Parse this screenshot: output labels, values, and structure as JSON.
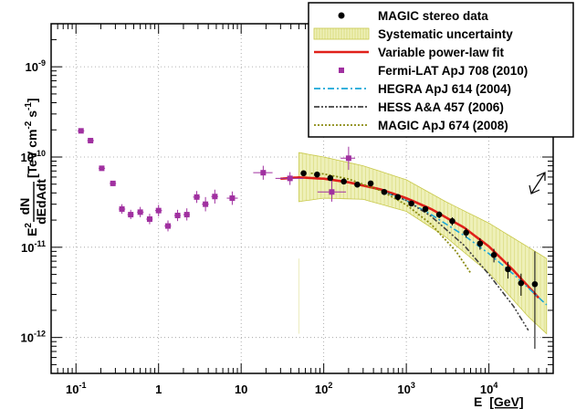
{
  "chart_data": {
    "type": "scatter",
    "x_scale": "log",
    "y_scale": "log",
    "xlim": [
      0.05,
      60000
    ],
    "ylim": [
      4e-13,
      3e-09
    ],
    "grid": true,
    "legend_position": "top-right",
    "xlabel": {
      "main": "E",
      "unit": "[GeV]"
    },
    "ylabel": {
      "prefix": "E",
      "prefix_exp": "2",
      "frac_num": "dN",
      "frac_den": "dEdAdt",
      "unit_a": "[TeV cm",
      "unit_exp1": "-2",
      "unit_b": " s",
      "unit_exp2": "-1",
      "unit_c": "]"
    },
    "x_ticks": [
      {
        "value": 0.1,
        "label": "10",
        "exp": "-1"
      },
      {
        "value": 1,
        "label": "1",
        "exp": ""
      },
      {
        "value": 10,
        "label": "10",
        "exp": ""
      },
      {
        "value": 100,
        "label": "10",
        "exp": "2"
      },
      {
        "value": 1000,
        "label": "10",
        "exp": "3"
      },
      {
        "value": 10000,
        "label": "10",
        "exp": "4"
      }
    ],
    "y_ticks": [
      {
        "value": 1e-12,
        "label": "10",
        "exp": "-12"
      },
      {
        "value": 1e-11,
        "label": "10",
        "exp": "-11"
      },
      {
        "value": 1e-10,
        "label": "10",
        "exp": "-10"
      },
      {
        "value": 1e-09,
        "label": "10",
        "exp": "-9"
      }
    ],
    "legend": [
      {
        "label": "MAGIC stereo data",
        "style": "dot",
        "color": "#000000"
      },
      {
        "label": "Systematic uncertainty",
        "style": "band",
        "color": "#c8c84a"
      },
      {
        "label": "Variable power-law fit",
        "style": "line",
        "color": "#e0201a"
      },
      {
        "label": "Fermi-LAT ApJ 708 (2010)",
        "style": "square",
        "color": "#a030a0"
      },
      {
        "label": "HEGRA ApJ 614 (2004)",
        "style": "dashdot",
        "color": "#18a6d8"
      },
      {
        "label": "HESS  A&A 457 (2006)",
        "style": "dashdotdot",
        "color": "#404040"
      },
      {
        "label": "MAGIC ApJ 674 (2008)",
        "style": "dotted",
        "color": "#8a8a10"
      }
    ],
    "series": [
      {
        "name": "Fermi-LAT ApJ 708 (2010)",
        "color": "#a030a0",
        "points": [
          {
            "x": 0.115,
            "y": 1.95e-10,
            "xlo": 0.105,
            "xhi": 0.126,
            "ylo": 1.85e-10,
            "yhi": 2.05e-10
          },
          {
            "x": 0.15,
            "y": 1.52e-10,
            "xlo": 0.137,
            "xhi": 0.165,
            "ylo": 1.44e-10,
            "yhi": 1.6e-10
          },
          {
            "x": 0.205,
            "y": 7.5e-11,
            "xlo": 0.188,
            "xhi": 0.225,
            "ylo": 7.1e-11,
            "yhi": 7.9e-11
          },
          {
            "x": 0.28,
            "y": 5.1e-11,
            "xlo": 0.256,
            "xhi": 0.306,
            "ylo": 4.75e-11,
            "yhi": 5.45e-11
          },
          {
            "x": 0.36,
            "y": 2.65e-11,
            "xlo": 0.33,
            "xhi": 0.395,
            "ylo": 2.35e-11,
            "yhi": 3e-11
          },
          {
            "x": 0.46,
            "y": 2.3e-11,
            "xlo": 0.42,
            "xhi": 0.5,
            "ylo": 2.05e-11,
            "yhi": 2.6e-11
          },
          {
            "x": 0.6,
            "y": 2.45e-11,
            "xlo": 0.55,
            "xhi": 0.66,
            "ylo": 2.15e-11,
            "yhi": 2.8e-11
          },
          {
            "x": 0.78,
            "y": 2.05e-11,
            "xlo": 0.71,
            "xhi": 0.85,
            "ylo": 1.8e-11,
            "yhi": 2.35e-11
          },
          {
            "x": 1.0,
            "y": 2.55e-11,
            "xlo": 0.91,
            "xhi": 1.1,
            "ylo": 2.2e-11,
            "yhi": 2.95e-11
          },
          {
            "x": 1.3,
            "y": 1.72e-11,
            "xlo": 1.18,
            "xhi": 1.42,
            "ylo": 1.5e-11,
            "yhi": 1.98e-11
          },
          {
            "x": 1.7,
            "y": 2.25e-11,
            "xlo": 1.55,
            "xhi": 1.86,
            "ylo": 1.95e-11,
            "yhi": 2.6e-11
          },
          {
            "x": 2.2,
            "y": 2.3e-11,
            "xlo": 2.0,
            "xhi": 2.4,
            "ylo": 1.98e-11,
            "yhi": 2.7e-11
          },
          {
            "x": 2.9,
            "y": 3.6e-11,
            "xlo": 2.62,
            "xhi": 3.18,
            "ylo": 3.1e-11,
            "yhi": 4.2e-11
          },
          {
            "x": 3.7,
            "y": 3e-11,
            "xlo": 3.35,
            "xhi": 4.05,
            "ylo": 2.5e-11,
            "yhi": 3.6e-11
          },
          {
            "x": 4.8,
            "y": 3.65e-11,
            "xlo": 4.35,
            "xhi": 5.25,
            "ylo": 3.05e-11,
            "yhi": 4.35e-11
          },
          {
            "x": 7.8,
            "y": 3.5e-11,
            "xlo": 6.7,
            "xhi": 9.1,
            "ylo": 2.95e-11,
            "yhi": 4.15e-11
          },
          {
            "x": 18.5,
            "y": 6.7e-11,
            "xlo": 14.0,
            "xhi": 24.0,
            "ylo": 5.6e-11,
            "yhi": 8e-11
          },
          {
            "x": 39,
            "y": 5.8e-11,
            "xlo": 26.0,
            "xhi": 57.0,
            "ylo": 4.9e-11,
            "yhi": 6.8e-11
          },
          {
            "x": 125,
            "y": 4.1e-11,
            "xlo": 84.0,
            "xhi": 186.0,
            "ylo": 3.2e-11,
            "yhi": 6e-11
          },
          {
            "x": 200,
            "y": 9.7e-11,
            "xlo": 160.0,
            "xhi": 240.0,
            "ylo": 7.2e-11,
            "yhi": 1.3e-10
          }
        ]
      },
      {
        "name": "MAGIC stereo data",
        "color": "#000000",
        "points": [
          {
            "x": 57,
            "y": 6.6e-11,
            "ylo": 6.3e-11,
            "yhi": 6.9e-11
          },
          {
            "x": 83,
            "y": 6.4e-11,
            "ylo": 6.1e-11,
            "yhi": 6.7e-11
          },
          {
            "x": 120,
            "y": 5.85e-11,
            "ylo": 5.6e-11,
            "yhi": 6.1e-11
          },
          {
            "x": 175,
            "y": 5.35e-11,
            "ylo": 5.1e-11,
            "yhi": 5.6e-11
          },
          {
            "x": 255,
            "y": 4.95e-11,
            "ylo": 4.7e-11,
            "yhi": 5.2e-11
          },
          {
            "x": 370,
            "y": 5.1e-11,
            "ylo": 4.85e-11,
            "yhi": 5.35e-11
          },
          {
            "x": 540,
            "y": 4.1e-11,
            "ylo": 3.9e-11,
            "yhi": 4.3e-11
          },
          {
            "x": 790,
            "y": 3.6e-11,
            "ylo": 3.4e-11,
            "yhi": 3.8e-11
          },
          {
            "x": 1150,
            "y": 3.05e-11,
            "ylo": 2.85e-11,
            "yhi": 3.25e-11
          },
          {
            "x": 1700,
            "y": 2.65e-11,
            "ylo": 2.45e-11,
            "yhi": 2.85e-11
          },
          {
            "x": 2500,
            "y": 2.3e-11,
            "ylo": 2.1e-11,
            "yhi": 2.5e-11
          },
          {
            "x": 3600,
            "y": 1.95e-11,
            "ylo": 1.75e-11,
            "yhi": 2.15e-11
          },
          {
            "x": 5300,
            "y": 1.45e-11,
            "ylo": 1.28e-11,
            "yhi": 1.62e-11
          },
          {
            "x": 7800,
            "y": 1.1e-11,
            "ylo": 9.4e-12,
            "yhi": 1.26e-11
          },
          {
            "x": 11500,
            "y": 8.2e-12,
            "ylo": 6.8e-12,
            "yhi": 9.6e-12
          },
          {
            "x": 17000,
            "y": 5.7e-12,
            "ylo": 4.5e-12,
            "yhi": 6.9e-12
          },
          {
            "x": 24500,
            "y": 4e-12,
            "ylo": 2.9e-12,
            "yhi": 5.1e-12
          },
          {
            "x": 36000,
            "y": 3.9e-12,
            "ylo": 7.5e-13,
            "yhi": 9e-12
          }
        ]
      }
    ],
    "curves": [
      {
        "name": "Systematic uncertainty",
        "kind": "band",
        "fill": "#eef0b8",
        "stroke": "#c8c84a",
        "upper": [
          [
            50,
            1.12e-10
          ],
          [
            100,
            1e-10
          ],
          [
            300,
            8e-11
          ],
          [
            1000,
            5.6e-11
          ],
          [
            3000,
            3.2e-11
          ],
          [
            10000,
            1.85e-11
          ],
          [
            30000,
            1e-11
          ],
          [
            50000,
            7.5e-12
          ]
        ],
        "lower": [
          [
            50,
            3.2e-11
          ],
          [
            100,
            3.5e-11
          ],
          [
            300,
            3.4e-11
          ],
          [
            1000,
            2.5e-11
          ],
          [
            3000,
            1.3e-11
          ],
          [
            10000,
            5.2e-12
          ],
          [
            30000,
            1.7e-12
          ],
          [
            50000,
            1.1e-12
          ]
        ]
      },
      {
        "name": "Variable power-law fit",
        "kind": "line",
        "color": "#e0201a",
        "width": 2.6,
        "dash": "",
        "points": [
          [
            30,
            5.75e-11
          ],
          [
            50,
            5.95e-11
          ],
          [
            100,
            5.75e-11
          ],
          [
            200,
            5.25e-11
          ],
          [
            500,
            4.35e-11
          ],
          [
            1000,
            3.5e-11
          ],
          [
            2000,
            2.65e-11
          ],
          [
            5000,
            1.65e-11
          ],
          [
            10000,
            1.02e-11
          ],
          [
            20000,
            5.5e-12
          ],
          [
            40000,
            2.75e-12
          ]
        ]
      },
      {
        "name": "HEGRA ApJ 614 (2004)",
        "kind": "line",
        "color": "#18a6d8",
        "width": 1.6,
        "dash": "7,3,2,3",
        "points": [
          [
            500,
            4.2e-11
          ],
          [
            1000,
            3.3e-11
          ],
          [
            2000,
            2.3e-11
          ],
          [
            5000,
            1.35e-11
          ],
          [
            10000,
            8.5e-12
          ],
          [
            20000,
            5e-12
          ],
          [
            50000,
            2.3e-12
          ]
        ]
      },
      {
        "name": "HESS  A&A 457 (2006)",
        "kind": "line",
        "color": "#404040",
        "width": 1.6,
        "dash": "6,2,2,2,2,2",
        "points": [
          [
            500,
            4.3e-11
          ],
          [
            1000,
            3.3e-11
          ],
          [
            2000,
            2.2e-11
          ],
          [
            5000,
            1.05e-11
          ],
          [
            10000,
            5e-12
          ],
          [
            20000,
            2.2e-12
          ],
          [
            30000,
            1.2e-12
          ]
        ]
      },
      {
        "name": "MAGIC ApJ 674 (2008)",
        "kind": "line",
        "color": "#8a8a10",
        "width": 1.8,
        "dash": "2,2",
        "points": [
          [
            70,
            6.6e-11
          ],
          [
            100,
            6.5e-11
          ],
          [
            200,
            5.7e-11
          ],
          [
            500,
            4.2e-11
          ],
          [
            1000,
            2.95e-11
          ],
          [
            2000,
            1.8e-11
          ],
          [
            4000,
            9e-12
          ],
          [
            6000,
            5.2e-12
          ]
        ]
      }
    ]
  }
}
